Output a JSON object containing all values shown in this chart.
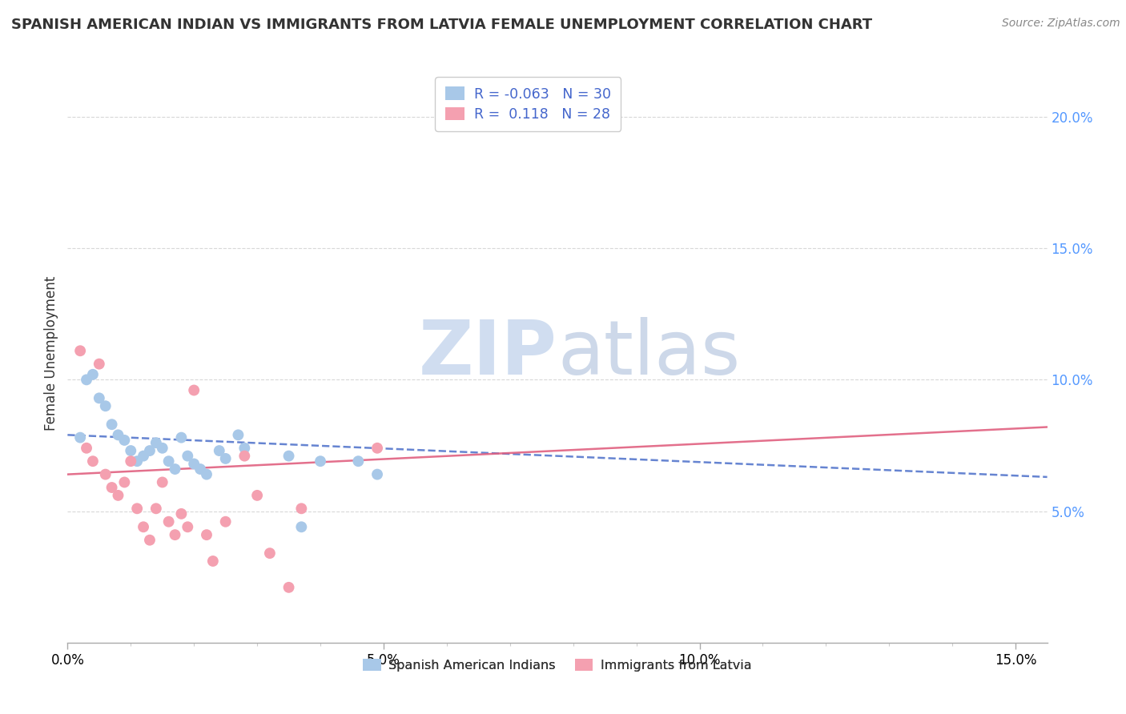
{
  "title": "SPANISH AMERICAN INDIAN VS IMMIGRANTS FROM LATVIA FEMALE UNEMPLOYMENT CORRELATION CHART",
  "source": "Source: ZipAtlas.com",
  "ylabel": "Female Unemployment",
  "r_blue": -0.063,
  "n_blue": 30,
  "r_pink": 0.118,
  "n_pink": 28,
  "color_blue": "#a8c8e8",
  "color_pink": "#f4a0b0",
  "line_color_blue": "#5577cc",
  "line_color_pink": "#e06080",
  "watermark_zip": "ZIP",
  "watermark_atlas": "atlas",
  "legend_label_blue": "Spanish American Indians",
  "legend_label_pink": "Immigrants from Latvia",
  "background_color": "#FFFFFF",
  "grid_color": "#d8d8d8",
  "blue_points": [
    [
      0.002,
      0.078
    ],
    [
      0.003,
      0.1
    ],
    [
      0.004,
      0.102
    ],
    [
      0.005,
      0.093
    ],
    [
      0.006,
      0.09
    ],
    [
      0.007,
      0.083
    ],
    [
      0.008,
      0.079
    ],
    [
      0.009,
      0.077
    ],
    [
      0.01,
      0.073
    ],
    [
      0.011,
      0.069
    ],
    [
      0.012,
      0.071
    ],
    [
      0.013,
      0.073
    ],
    [
      0.014,
      0.076
    ],
    [
      0.015,
      0.074
    ],
    [
      0.016,
      0.069
    ],
    [
      0.017,
      0.066
    ],
    [
      0.018,
      0.078
    ],
    [
      0.019,
      0.071
    ],
    [
      0.02,
      0.068
    ],
    [
      0.021,
      0.066
    ],
    [
      0.022,
      0.064
    ],
    [
      0.024,
      0.073
    ],
    [
      0.025,
      0.07
    ],
    [
      0.027,
      0.079
    ],
    [
      0.028,
      0.074
    ],
    [
      0.035,
      0.071
    ],
    [
      0.037,
      0.044
    ],
    [
      0.04,
      0.069
    ],
    [
      0.046,
      0.069
    ],
    [
      0.049,
      0.064
    ]
  ],
  "pink_points": [
    [
      0.002,
      0.111
    ],
    [
      0.003,
      0.074
    ],
    [
      0.004,
      0.069
    ],
    [
      0.005,
      0.106
    ],
    [
      0.006,
      0.064
    ],
    [
      0.007,
      0.059
    ],
    [
      0.008,
      0.056
    ],
    [
      0.009,
      0.061
    ],
    [
      0.01,
      0.069
    ],
    [
      0.011,
      0.051
    ],
    [
      0.012,
      0.044
    ],
    [
      0.013,
      0.039
    ],
    [
      0.014,
      0.051
    ],
    [
      0.015,
      0.061
    ],
    [
      0.016,
      0.046
    ],
    [
      0.017,
      0.041
    ],
    [
      0.018,
      0.049
    ],
    [
      0.019,
      0.044
    ],
    [
      0.02,
      0.096
    ],
    [
      0.022,
      0.041
    ],
    [
      0.023,
      0.031
    ],
    [
      0.025,
      0.046
    ],
    [
      0.028,
      0.071
    ],
    [
      0.03,
      0.056
    ],
    [
      0.032,
      0.034
    ],
    [
      0.035,
      0.021
    ],
    [
      0.037,
      0.051
    ],
    [
      0.049,
      0.074
    ]
  ],
  "xlim": [
    0.0,
    0.155
  ],
  "ylim": [
    0.0,
    0.22
  ],
  "xticks": [
    0.0,
    0.05,
    0.1,
    0.15
  ],
  "xticklabels": [
    "0.0%",
    "5.0%",
    "10.0%",
    "15.0%"
  ],
  "yticks_right": [
    0.05,
    0.1,
    0.15,
    0.2
  ],
  "yticklabels_right": [
    "5.0%",
    "10.0%",
    "15.0%",
    "20.0%"
  ],
  "right_tick_color": "#5599FF"
}
